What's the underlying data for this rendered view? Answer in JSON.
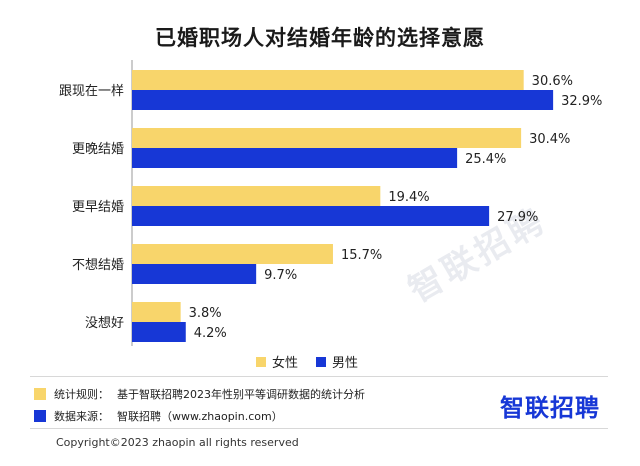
{
  "colors": {
    "female": "#f8d56b",
    "male": "#1737d6",
    "axis": "#999999"
  },
  "chart_data": {
    "type": "bar",
    "orientation": "horizontal",
    "title": "已婚职场人对结婚年龄的选择意愿",
    "categories": [
      "跟现在一样",
      "更晚结婚",
      "更早结婚",
      "不想结婚",
      "没想好"
    ],
    "series": [
      {
        "name": "女性",
        "values": [
          30.6,
          30.4,
          19.4,
          15.7,
          3.8
        ],
        "labels": [
          "30.6%",
          "30.4%",
          "19.4%",
          "15.7%",
          "3.8%"
        ]
      },
      {
        "name": "男性",
        "values": [
          32.9,
          25.4,
          27.9,
          9.7,
          4.2
        ],
        "labels": [
          "32.9%",
          "25.4%",
          "27.9%",
          "9.7%",
          "4.2%"
        ]
      }
    ],
    "xlim": [
      0,
      35
    ],
    "legend_position": "bottom",
    "grid": false
  },
  "notes": [
    {
      "label": "统计规则：",
      "text": "基于智联招聘2023年性别平等调研数据的统计分析",
      "color": "#f8d56b"
    },
    {
      "label": "数据来源：",
      "text": "智联招聘（www.zhaopin.com）",
      "color": "#1737d6"
    }
  ],
  "brand": "智联招聘",
  "watermark": "智联招聘",
  "copyright": "Copyright©2023 zhaopin all rights reserved"
}
